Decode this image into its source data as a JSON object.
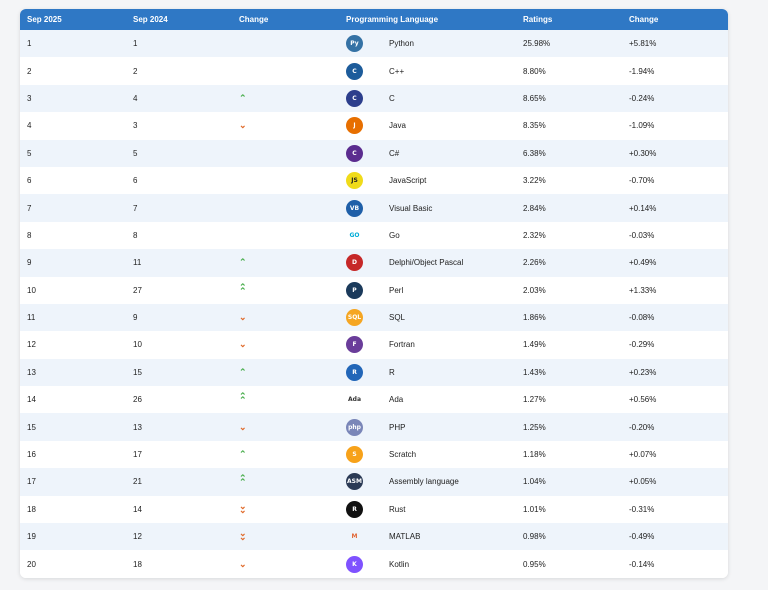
{
  "headers": [
    "Sep 2025",
    "Sep 2024",
    "Change",
    "Programming Language",
    "Ratings",
    "Change"
  ],
  "rows": [
    {
      "rank": "1",
      "prev": "1",
      "trend": "",
      "language": "Python",
      "rating": "25.98%",
      "change": "+5.81%",
      "icon": "python-icon",
      "color": "#3572A5",
      "glyph": "Py"
    },
    {
      "rank": "2",
      "prev": "2",
      "trend": "",
      "language": "C++",
      "rating": "8.80%",
      "change": "-1.94%",
      "icon": "cpp-icon",
      "color": "#1d5c9b",
      "glyph": "C"
    },
    {
      "rank": "3",
      "prev": "4",
      "trend": "up",
      "language": "C",
      "rating": "8.65%",
      "change": "-0.24%",
      "icon": "c-icon",
      "color": "#2c3e8c",
      "glyph": "C"
    },
    {
      "rank": "4",
      "prev": "3",
      "trend": "down",
      "language": "Java",
      "rating": "8.35%",
      "change": "-1.09%",
      "icon": "java-icon",
      "color": "#e76f00",
      "glyph": "J"
    },
    {
      "rank": "5",
      "prev": "5",
      "trend": "",
      "language": "C#",
      "rating": "6.38%",
      "change": "+0.30%",
      "icon": "csharp-icon",
      "color": "#5b2c8f",
      "glyph": "C"
    },
    {
      "rank": "6",
      "prev": "6",
      "trend": "",
      "language": "JavaScript",
      "rating": "3.22%",
      "change": "-0.70%",
      "icon": "javascript-icon",
      "color": "#f0db1a",
      "glyph": "JS"
    },
    {
      "rank": "7",
      "prev": "7",
      "trend": "",
      "language": "Visual Basic",
      "rating": "2.84%",
      "change": "+0.14%",
      "icon": "visual-basic-icon",
      "color": "#1f5fa8",
      "glyph": "VB"
    },
    {
      "rank": "8",
      "prev": "8",
      "trend": "",
      "language": "Go",
      "rating": "2.32%",
      "change": "-0.03%",
      "icon": "go-icon",
      "color": "#00acd7",
      "glyph": "GO"
    },
    {
      "rank": "9",
      "prev": "11",
      "trend": "up",
      "language": "Delphi/Object Pascal",
      "rating": "2.26%",
      "change": "+0.49%",
      "icon": "delphi-icon",
      "color": "#c62828",
      "glyph": "D"
    },
    {
      "rank": "10",
      "prev": "27",
      "trend": "up2",
      "language": "Perl",
      "rating": "2.03%",
      "change": "+1.33%",
      "icon": "perl-icon",
      "color": "#1b3a5b",
      "glyph": "P"
    },
    {
      "rank": "11",
      "prev": "9",
      "trend": "down",
      "language": "SQL",
      "rating": "1.86%",
      "change": "-0.08%",
      "icon": "sql-icon",
      "color": "#f5a623",
      "glyph": "SQL"
    },
    {
      "rank": "12",
      "prev": "10",
      "trend": "down",
      "language": "Fortran",
      "rating": "1.49%",
      "change": "-0.29%",
      "icon": "fortran-icon",
      "color": "#6a3d9a",
      "glyph": "F"
    },
    {
      "rank": "13",
      "prev": "15",
      "trend": "up",
      "language": "R",
      "rating": "1.43%",
      "change": "+0.23%",
      "icon": "r-icon",
      "color": "#2266b8",
      "glyph": "R"
    },
    {
      "rank": "14",
      "prev": "26",
      "trend": "up2",
      "language": "Ada",
      "rating": "1.27%",
      "change": "+0.56%",
      "icon": "ada-icon",
      "color": "#333333",
      "glyph": "Ada"
    },
    {
      "rank": "15",
      "prev": "13",
      "trend": "down",
      "language": "PHP",
      "rating": "1.25%",
      "change": "-0.20%",
      "icon": "php-icon",
      "color": "#7a86b8",
      "glyph": "php"
    },
    {
      "rank": "16",
      "prev": "17",
      "trend": "up",
      "language": "Scratch",
      "rating": "1.18%",
      "change": "+0.07%",
      "icon": "scratch-icon",
      "color": "#f7a21a",
      "glyph": "S"
    },
    {
      "rank": "17",
      "prev": "21",
      "trend": "up2",
      "language": "Assembly language",
      "rating": "1.04%",
      "change": "+0.05%",
      "icon": "assembly-icon",
      "color": "#2b3a55",
      "glyph": "ASM"
    },
    {
      "rank": "18",
      "prev": "14",
      "trend": "down2",
      "language": "Rust",
      "rating": "1.01%",
      "change": "-0.31%",
      "icon": "rust-icon",
      "color": "#111111",
      "glyph": "R"
    },
    {
      "rank": "19",
      "prev": "12",
      "trend": "down2",
      "language": "MATLAB",
      "rating": "0.98%",
      "change": "-0.49%",
      "icon": "matlab-icon",
      "color": "#e16737",
      "glyph": "M"
    },
    {
      "rank": "20",
      "prev": "18",
      "trend": "down",
      "language": "Kotlin",
      "rating": "0.95%",
      "change": "-0.14%",
      "icon": "kotlin-icon",
      "color": "#7f52ff",
      "glyph": "K"
    }
  ]
}
